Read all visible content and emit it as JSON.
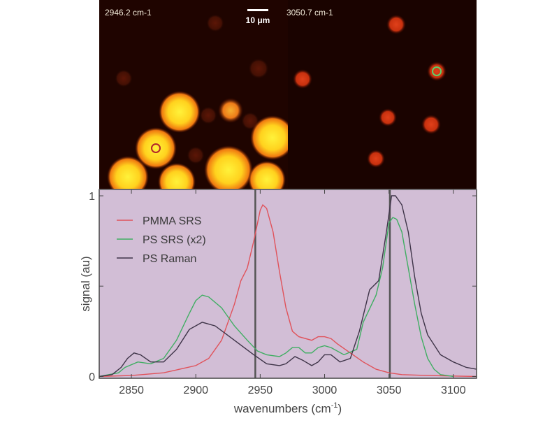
{
  "images": {
    "left_label": "2946.2 cm-1",
    "right_label": "3050.7 cm-1",
    "scale_bar_label": "10 μm",
    "left_marker_color": "#b3262a",
    "right_marker_color": "#5fcf6a"
  },
  "chart_data": {
    "type": "line",
    "xlabel": "wavenumbers (cm",
    "xlabel_sup": "-1",
    "xlabel_close": ")",
    "ylabel": "signal (au)",
    "xlim": [
      2825,
      3118
    ],
    "ylim": [
      -0.01,
      1.035
    ],
    "xticks": [
      2850,
      2900,
      2950,
      3000,
      3050,
      3100
    ],
    "xtick_labels": [
      "2850",
      "2900",
      "2950",
      "3000",
      "3050",
      "3100"
    ],
    "yticks": [
      0,
      0.5,
      1
    ],
    "ytick_labels": [
      "0",
      "",
      "1"
    ],
    "vertical_lines": [
      2946.2,
      3050.7
    ],
    "background": "#d2bed6",
    "legend_placement": "top-left",
    "series": [
      {
        "name": "PMMA SRS",
        "color": "#e0525a",
        "x": [
          2825,
          2850,
          2875,
          2900,
          2910,
          2920,
          2930,
          2935,
          2940,
          2945,
          2950,
          2952,
          2955,
          2960,
          2965,
          2970,
          2975,
          2980,
          2990,
          2995,
          3000,
          3005,
          3010,
          3020,
          3030,
          3040,
          3050,
          3060,
          3080,
          3118
        ],
        "y": [
          0,
          0.005,
          0.02,
          0.06,
          0.1,
          0.2,
          0.4,
          0.53,
          0.6,
          0.75,
          0.92,
          0.95,
          0.93,
          0.8,
          0.58,
          0.38,
          0.25,
          0.22,
          0.2,
          0.22,
          0.22,
          0.21,
          0.18,
          0.13,
          0.08,
          0.04,
          0.02,
          0.01,
          0.005,
          0
        ]
      },
      {
        "name": "PS SRS (x2)",
        "color": "#3fae62",
        "x": [
          2825,
          2840,
          2845,
          2855,
          2865,
          2875,
          2885,
          2895,
          2900,
          2905,
          2910,
          2920,
          2930,
          2940,
          2948,
          2955,
          2965,
          2970,
          2975,
          2980,
          2985,
          2990,
          2995,
          3000,
          3005,
          3015,
          3025,
          3030,
          3040,
          3045,
          3050,
          3053,
          3056,
          3060,
          3065,
          3070,
          3075,
          3080,
          3085,
          3090,
          3100
        ],
        "y": [
          0,
          0.02,
          0.05,
          0.08,
          0.07,
          0.1,
          0.2,
          0.35,
          0.42,
          0.45,
          0.44,
          0.38,
          0.28,
          0.2,
          0.14,
          0.12,
          0.11,
          0.13,
          0.16,
          0.16,
          0.13,
          0.13,
          0.16,
          0.17,
          0.16,
          0.12,
          0.15,
          0.3,
          0.45,
          0.6,
          0.85,
          0.88,
          0.87,
          0.8,
          0.6,
          0.4,
          0.22,
          0.1,
          0.04,
          0.01,
          0
        ]
      },
      {
        "name": "PS Raman",
        "color": "#3e3448",
        "x": [
          2825,
          2835,
          2842,
          2847,
          2852,
          2857,
          2865,
          2875,
          2885,
          2895,
          2905,
          2915,
          2930,
          2945,
          2955,
          2965,
          2970,
          2977,
          2983,
          2990,
          2995,
          3000,
          3005,
          3012,
          3020,
          3027,
          3035,
          3042,
          3048,
          3052,
          3055,
          3060,
          3065,
          3070,
          3075,
          3080,
          3090,
          3100,
          3110,
          3118
        ],
        "y": [
          0,
          0.01,
          0.05,
          0.1,
          0.13,
          0.12,
          0.08,
          0.08,
          0.15,
          0.26,
          0.3,
          0.28,
          0.2,
          0.12,
          0.07,
          0.06,
          0.07,
          0.11,
          0.09,
          0.06,
          0.08,
          0.12,
          0.12,
          0.08,
          0.1,
          0.25,
          0.48,
          0.53,
          0.8,
          1.0,
          1.0,
          0.95,
          0.8,
          0.55,
          0.35,
          0.23,
          0.12,
          0.08,
          0.05,
          0.04
        ]
      }
    ]
  }
}
